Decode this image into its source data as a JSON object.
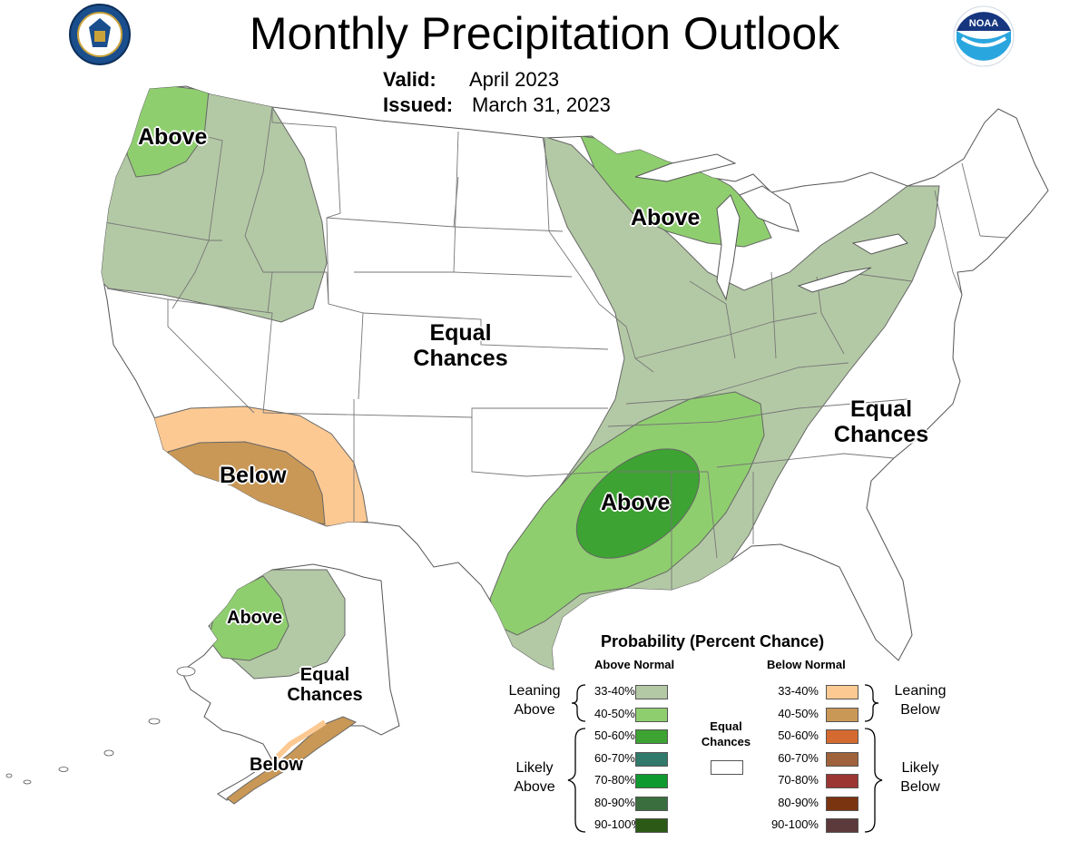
{
  "header": {
    "title": "Monthly Precipitation Outlook",
    "valid_label": "Valid:",
    "valid_value": "April 2023",
    "issued_label": "Issued:",
    "issued_value": "March 31, 2023"
  },
  "logos": {
    "left": "department-of-commerce-seal-icon",
    "right": "noaa-logo-icon",
    "right_text": "NOAA"
  },
  "map_labels": {
    "nw_above": "Above",
    "great_lakes_above": "Above",
    "central_equal_1": "Equal",
    "central_equal_2": "Chances",
    "east_equal_1": "Equal",
    "east_equal_2": "Chances",
    "sw_below": "Below",
    "south_above": "Above",
    "ak_above": "Above",
    "ak_equal_1": "Equal",
    "ak_equal_2": "Chances",
    "ak_below": "Below"
  },
  "legend": {
    "title": "Probability (Percent Chance)",
    "above_header": "Above Normal",
    "below_header": "Below Normal",
    "equal_label_1": "Equal",
    "equal_label_2": "Chances",
    "leaning_above_1": "Leaning",
    "leaning_above_2": "Above",
    "likely_above_1": "Likely",
    "likely_above_2": "Above",
    "leaning_below_1": "Leaning",
    "leaning_below_2": "Below",
    "likely_below_1": "Likely",
    "likely_below_2": "Below",
    "above_items": [
      {
        "range": "33-40%",
        "color": "#b3c9a5"
      },
      {
        "range": "40-50%",
        "color": "#8fce6f"
      },
      {
        "range": "50-60%",
        "color": "#3da332"
      },
      {
        "range": "60-70%",
        "color": "#2f7a6a"
      },
      {
        "range": "70-80%",
        "color": "#0f9a30"
      },
      {
        "range": "80-90%",
        "color": "#3a6e3e"
      },
      {
        "range": "90-100%",
        "color": "#2b5a16"
      }
    ],
    "below_items": [
      {
        "range": "33-40%",
        "color": "#fdc993"
      },
      {
        "range": "40-50%",
        "color": "#c99856"
      },
      {
        "range": "50-60%",
        "color": "#d56a30"
      },
      {
        "range": "60-70%",
        "color": "#a0623a"
      },
      {
        "range": "70-80%",
        "color": "#9b3632"
      },
      {
        "range": "80-90%",
        "color": "#7a3410"
      },
      {
        "range": "90-100%",
        "color": "#5c3a3c"
      }
    ]
  },
  "colors": {
    "lean_above": "#b3c9a5",
    "above_40": "#8fce6f",
    "above_50": "#3da332",
    "lean_below": "#fdc993",
    "below_40": "#c99856",
    "equal": "#ffffff",
    "state_border": "#555555"
  }
}
